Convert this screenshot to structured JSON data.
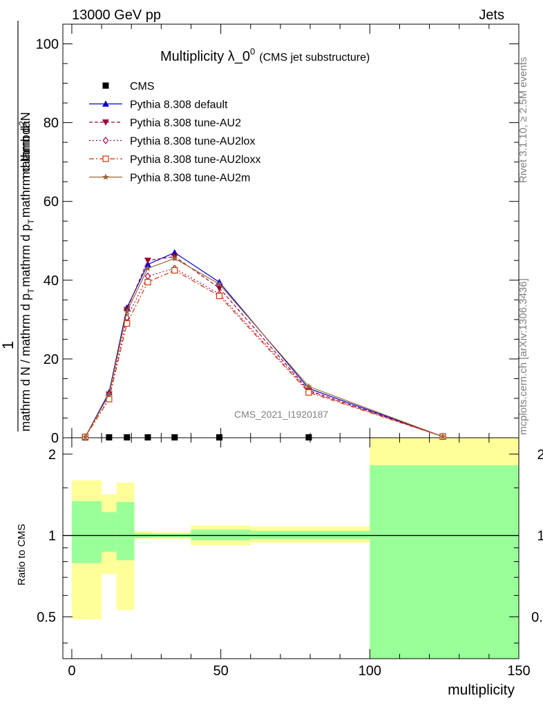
{
  "header": {
    "left": "13000 GeV pp",
    "right": "Jets"
  },
  "side": {
    "rivet": "Rivet 3.1.10, ≥ 2.5M events",
    "mcplots": "mcplots.cern.ch [arXiv:1306.3436]"
  },
  "colors": {
    "ratio_yellow": "#ffff99",
    "ratio_green": "#99ff99",
    "cms": "#000000",
    "default": "#0000cc",
    "AU2": "#990033",
    "AU2lox": "#aa0055",
    "AU2loxx": "#cc3300",
    "AU2m": "#996633"
  },
  "chart_data": [
    {
      "type": "line",
      "title_main": "Multiplicity λ_0",
      "title_sup": "0",
      "title_note": "(CMS jet substructure)",
      "watermark": "CMS_2021_I1920187",
      "ylabel_numerator": "1",
      "ylabel_denominator": "mathrm d N / mathrm d p_T mathrm d p_T mathrm d lambda",
      "ylabel_parts": {
        "num": "1",
        "den_a": "mathrm d N / mathrm d p",
        "den_b": "mathrm d p",
        "den_c": "mathrm d lambda",
        "rhs_a": "mathrm d",
        "rhs_b": "N",
        "sub_T": "T",
        "sup_2": "2"
      },
      "xlim": [
        -3,
        150
      ],
      "ylim": [
        0,
        105
      ],
      "yticks": [
        0,
        20,
        40,
        60,
        80,
        100
      ],
      "ytick_labels": [
        "0",
        "20",
        "40",
        "60",
        "80",
        "100"
      ],
      "legend": [
        {
          "name": "CMS",
          "marker": "square",
          "style": "solid"
        },
        {
          "name": "Pythia 8.308 default",
          "marker": "triangle-up",
          "style": "solid"
        },
        {
          "name": "Pythia 8.308 tune-AU2",
          "marker": "triangle-down",
          "style": "dashed"
        },
        {
          "name": "Pythia 8.308 tune-AU2lox",
          "marker": "diamond",
          "style": "dotted"
        },
        {
          "name": "Pythia 8.308 tune-AU2loxx",
          "marker": "square-open",
          "style": "dashdot"
        },
        {
          "name": "Pythia 8.308 tune-AU2m",
          "marker": "star",
          "style": "solid"
        }
      ],
      "x": [
        4.5,
        12.5,
        18.5,
        25.5,
        34.5,
        49.5,
        79.5,
        124.5
      ],
      "series": [
        {
          "name": "CMS",
          "values": [
            0.1,
            0.1,
            0.1,
            0.1,
            0.1,
            0.1,
            0.1,
            0.0
          ]
        },
        {
          "name": "Pythia 8.308 default",
          "values": [
            0.2,
            11.5,
            33.0,
            44.0,
            47.0,
            39.5,
            12.5,
            0.3
          ]
        },
        {
          "name": "Pythia 8.308 tune-AU2",
          "values": [
            0.2,
            11.0,
            32.5,
            45.0,
            46.0,
            38.0,
            12.0,
            0.3
          ]
        },
        {
          "name": "Pythia 8.308 tune-AU2lox",
          "values": [
            0.2,
            10.0,
            30.5,
            41.0,
            43.0,
            36.5,
            11.8,
            0.3
          ]
        },
        {
          "name": "Pythia 8.308 tune-AU2loxx",
          "values": [
            0.2,
            9.8,
            29.0,
            39.5,
            42.5,
            36.0,
            11.5,
            0.3
          ]
        },
        {
          "name": "Pythia 8.308 tune-AU2m",
          "values": [
            0.2,
            11.0,
            32.0,
            43.0,
            45.5,
            39.0,
            13.0,
            0.3
          ]
        }
      ]
    },
    {
      "type": "area",
      "ylabel": "Ratio to CMS",
      "xlabel": "multiplicity",
      "xlim": [
        -3,
        150
      ],
      "ylim": [
        0.35,
        2.3
      ],
      "xticks": [
        0,
        50,
        100,
        150
      ],
      "xtick_labels": [
        "0",
        "50",
        "100",
        "150"
      ],
      "yticks": [
        0.5,
        1,
        2
      ],
      "ytick_labels": [
        "0.5",
        "1",
        "2"
      ],
      "bands": [
        {
          "x0": 0,
          "x1": 10,
          "yellow": [
            0.49,
            1.6
          ],
          "green": [
            0.79,
            1.34
          ]
        },
        {
          "x0": 10,
          "x1": 15,
          "yellow": [
            0.72,
            1.42
          ],
          "green": [
            0.87,
            1.22
          ]
        },
        {
          "x0": 15,
          "x1": 21,
          "yellow": [
            0.53,
            1.57
          ],
          "green": [
            0.81,
            1.33
          ]
        },
        {
          "x0": 21,
          "x1": 27,
          "yellow": [
            0.97,
            1.04
          ],
          "green": [
            0.98,
            1.02
          ]
        },
        {
          "x0": 27,
          "x1": 40,
          "yellow": [
            0.97,
            1.03
          ],
          "green": [
            0.985,
            1.015
          ]
        },
        {
          "x0": 40,
          "x1": 60,
          "yellow": [
            0.92,
            1.09
          ],
          "green": [
            0.96,
            1.05
          ]
        },
        {
          "x0": 60,
          "x1": 100,
          "yellow": [
            0.94,
            1.08
          ],
          "green": [
            0.97,
            1.04
          ]
        },
        {
          "x0": 100,
          "x1": 150,
          "yellow": [
            0.35,
            2.3
          ],
          "green": [
            0.35,
            1.82
          ]
        }
      ]
    }
  ]
}
